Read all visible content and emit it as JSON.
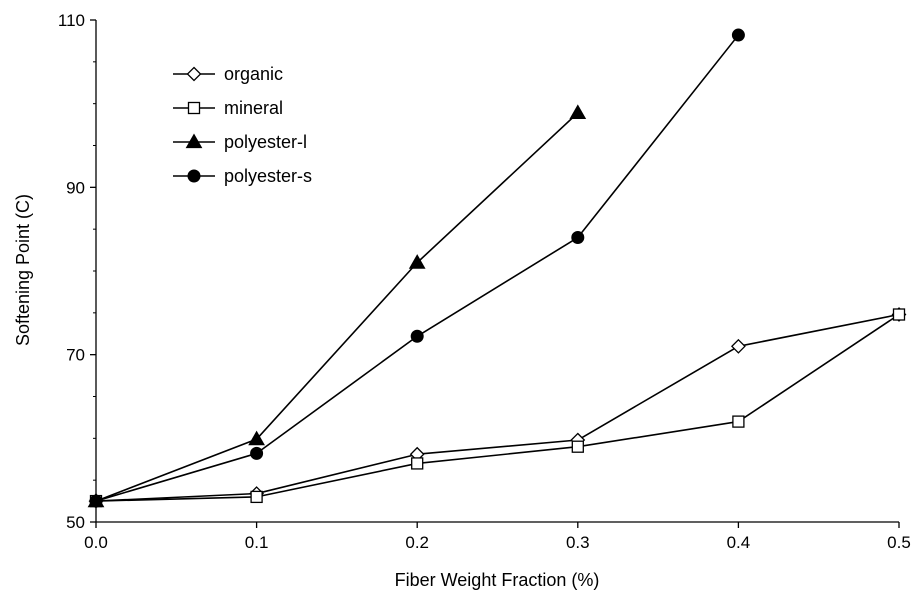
{
  "chart_data": {
    "type": "line",
    "title": "",
    "xlabel": "Fiber Weight Fraction (%)",
    "ylabel": "Softening Point (C)",
    "xlim": [
      0.0,
      0.5
    ],
    "ylim": [
      50,
      110
    ],
    "xticks": [
      0.0,
      0.1,
      0.2,
      0.3,
      0.4,
      0.5
    ],
    "xtick_labels": [
      "0.0",
      "0.1",
      "0.2",
      "0.3",
      "0.4",
      "0.5"
    ],
    "yticks": [
      50,
      70,
      90,
      110
    ],
    "ytick_labels": [
      "50",
      "70",
      "90",
      "110"
    ],
    "grid": false,
    "legend_position": "top-left",
    "series": [
      {
        "name": "organic",
        "marker": "diamond-open",
        "color": "#000000",
        "x": [
          0.0,
          0.1,
          0.2,
          0.3,
          0.4,
          0.5
        ],
        "y": [
          52.5,
          53.4,
          58.1,
          59.8,
          71.0,
          74.8
        ]
      },
      {
        "name": "mineral",
        "marker": "square-open",
        "color": "#000000",
        "x": [
          0.0,
          0.1,
          0.2,
          0.3,
          0.4,
          0.5
        ],
        "y": [
          52.5,
          53.0,
          57.0,
          59.0,
          62.0,
          74.8
        ]
      },
      {
        "name": "polyester-l",
        "marker": "triangle-filled",
        "color": "#000000",
        "x": [
          0.0,
          0.1,
          0.2,
          0.3
        ],
        "y": [
          52.5,
          59.9,
          81.0,
          98.9
        ]
      },
      {
        "name": "polyester-s",
        "marker": "circle-filled",
        "color": "#000000",
        "x": [
          0.0,
          0.1,
          0.2,
          0.3,
          0.4
        ],
        "y": [
          52.5,
          58.2,
          72.2,
          84.0,
          108.2
        ]
      }
    ]
  }
}
